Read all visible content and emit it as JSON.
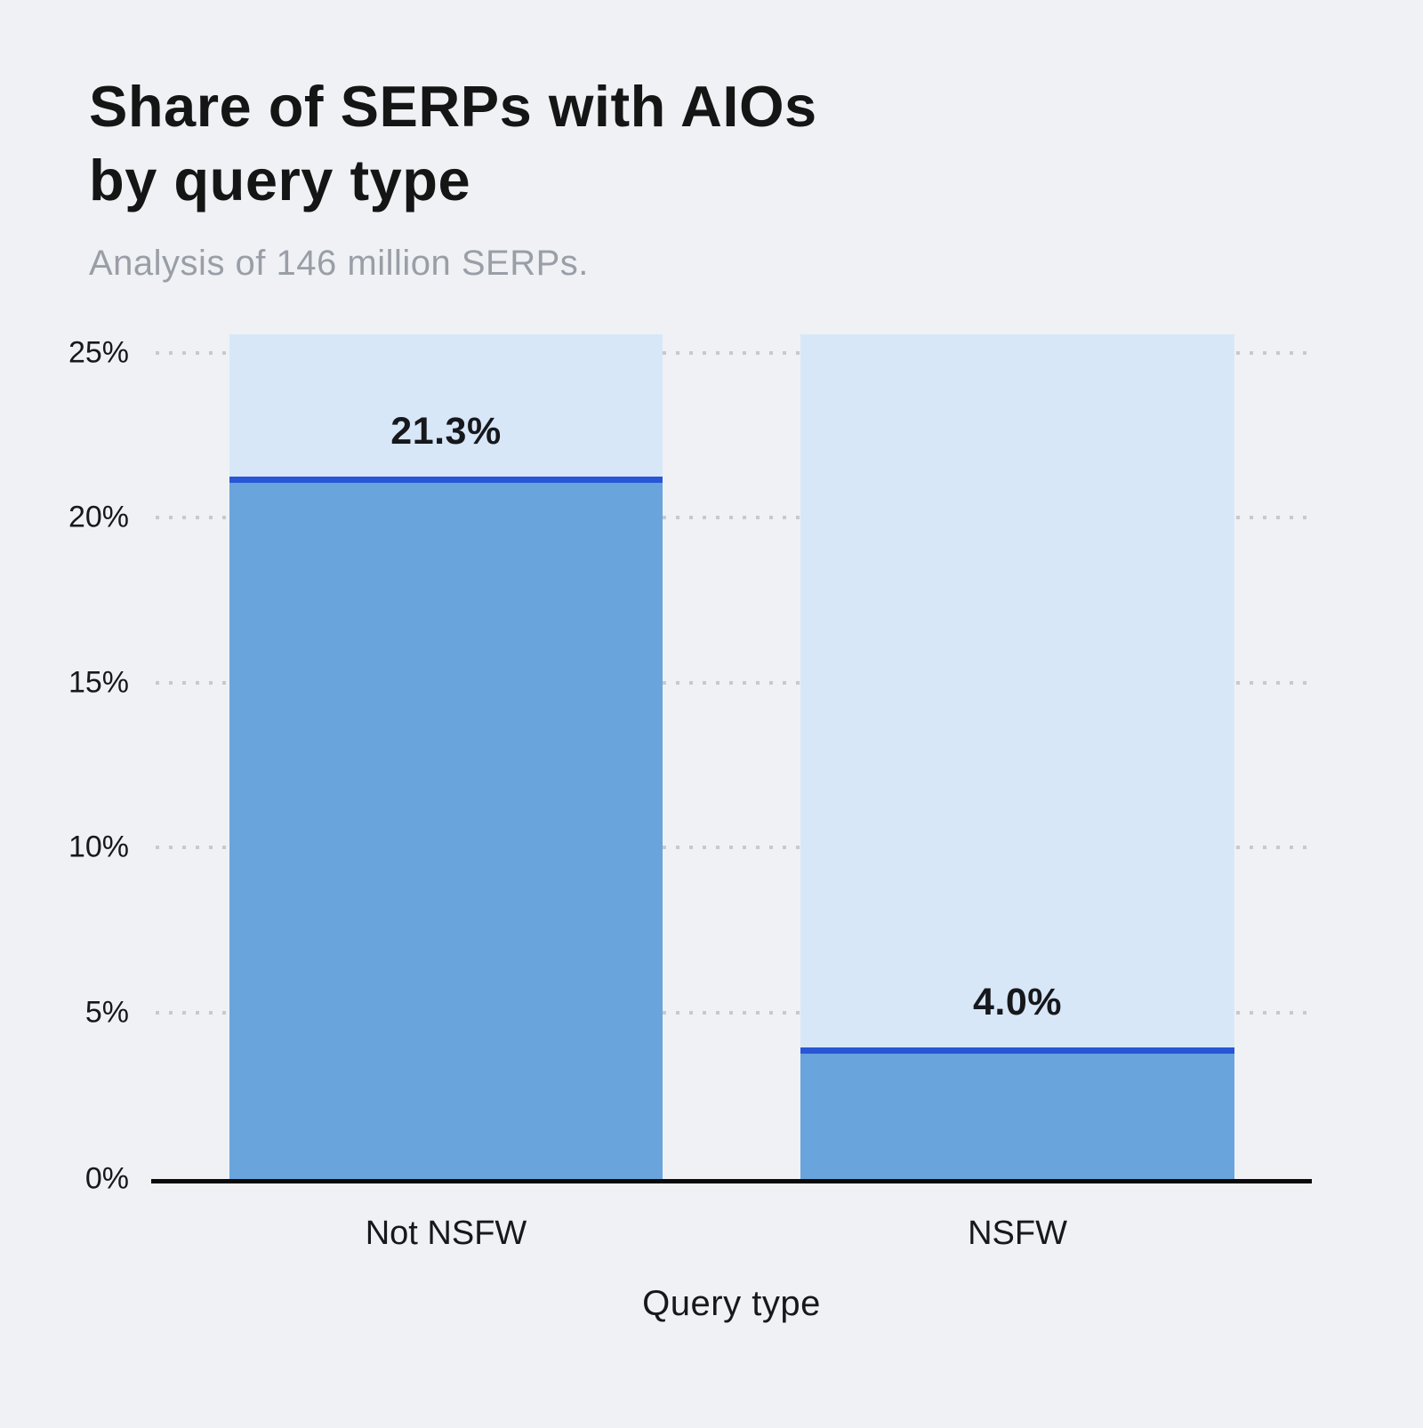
{
  "header": {
    "title_line1": "Share of SERPs with AIOs",
    "title_line2": "by query type",
    "subtitle": "Analysis of 146 million SERPs."
  },
  "chart_data": {
    "type": "bar",
    "title": "Share of SERPs with AIOs by query type",
    "subtitle": "Analysis of 146 million SERPs.",
    "categories": [
      "Not NSFW",
      "NSFW"
    ],
    "values": [
      21.3,
      4.0
    ],
    "value_labels": [
      "21.3%",
      "4.0%"
    ],
    "xlabel": "Query type",
    "ylabel": "",
    "ylim": [
      0,
      25.6
    ],
    "yticks": [
      "0%",
      "5%",
      "10%",
      "15%",
      "20%",
      "25%"
    ],
    "ytick_values": [
      0,
      5,
      10,
      15,
      20,
      25
    ],
    "grid": "dotted horizontal lines",
    "legend": "none",
    "colors": {
      "page_background": "#EFF1F5",
      "column_background": "#D8E7F8",
      "bar_fill": "#69A4DC",
      "bar_top_line": "#2856D6",
      "title_text": "#151515",
      "subtitle_text": "#9A9EA6",
      "grid_dots": "#C7C9CE",
      "axis_line": "#0A0A0A"
    }
  }
}
